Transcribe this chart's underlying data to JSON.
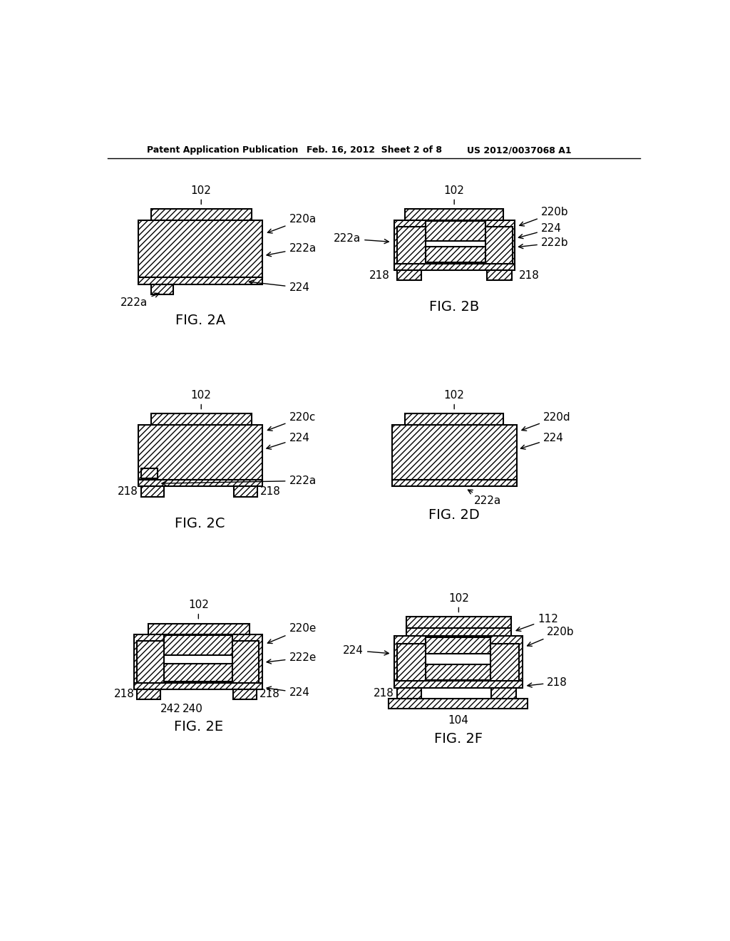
{
  "bg_color": "#ffffff",
  "header_text1": "Patent Application Publication",
  "header_text2": "Feb. 16, 2012  Sheet 2 of 8",
  "header_text3": "US 2012/0037068 A1",
  "fig_labels": [
    "FIG. 2A",
    "FIG. 2B",
    "FIG. 2C",
    "FIG. 2D",
    "FIG. 2E",
    "FIG. 2F"
  ],
  "hatch_pattern": "////",
  "line_color": "#000000",
  "face_color": "#ffffff"
}
